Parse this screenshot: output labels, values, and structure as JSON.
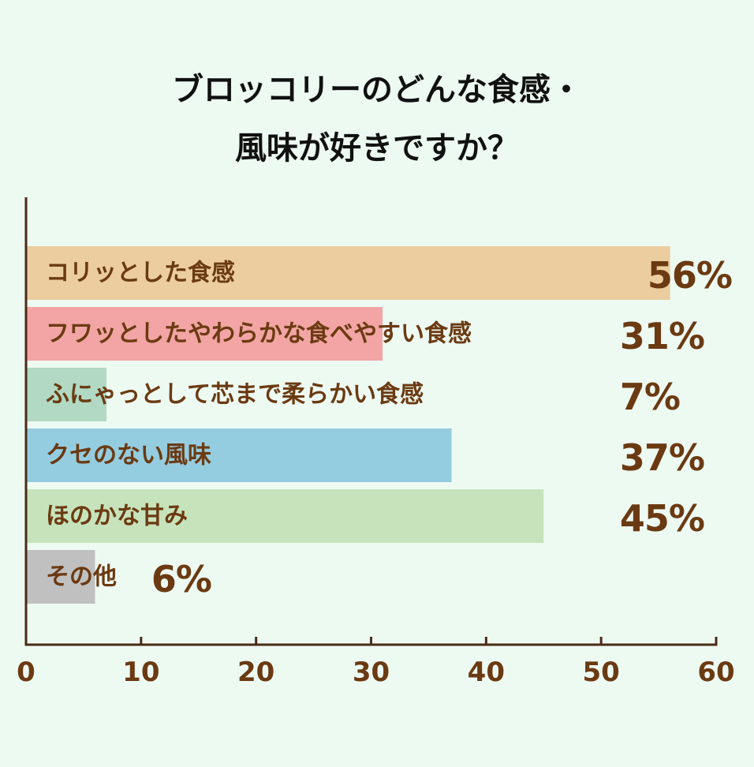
{
  "chart_data": {
    "type": "bar",
    "orientation": "horizontal",
    "title_lines": [
      "ブロッコリーのどんな食感・",
      "風味が好きですか？"
    ],
    "categories": [
      "コリッとした食感",
      "フワッとしたやわらかな食べやすい食感",
      "ふにゃっとして芯まで柔らかい食感",
      "クセのない風味",
      "ほのかな甘み",
      "その他"
    ],
    "values": [
      56,
      31,
      7,
      37,
      45,
      6
    ],
    "value_labels": [
      "56%",
      "31%",
      "7%",
      "37%",
      "45%",
      "6%"
    ],
    "bar_colors": [
      "#ebcd9f",
      "#f2a5a4",
      "#b1d9c3",
      "#95cde0",
      "#c7e3bb",
      "#c0c0c0"
    ],
    "xlim": [
      0,
      60
    ],
    "x_ticks": [
      "0",
      "10",
      "20",
      "30",
      "40",
      "50",
      "60"
    ],
    "label_color": "#6b3a12",
    "axis_color": "#4a2a15",
    "grid": false
  }
}
